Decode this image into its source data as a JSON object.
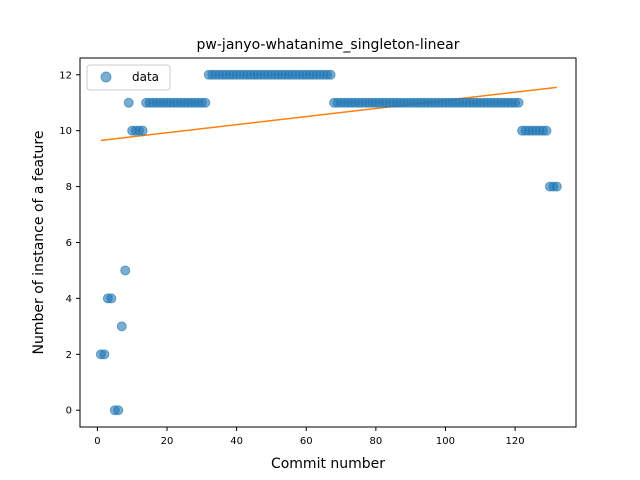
{
  "chart_data": {
    "type": "scatter",
    "title": "pw-janyo-whatanime_singleton-linear",
    "xlabel": "Commit number",
    "ylabel": "Number of instance of a feature",
    "xlim": [
      -5,
      137.5
    ],
    "ylim": [
      -0.6,
      12.6
    ],
    "xticks": [
      0,
      20,
      40,
      60,
      80,
      100,
      120
    ],
    "yticks": [
      0,
      2,
      4,
      6,
      8,
      10,
      12
    ],
    "grid": false,
    "legend": {
      "position": "upper-left",
      "entries": [
        "data"
      ]
    },
    "colors": {
      "data": "#1f77b4",
      "fit": "#ff7f0e"
    },
    "series": [
      {
        "name": "data",
        "kind": "scatter",
        "x": [
          1,
          2,
          3,
          4,
          5,
          6,
          7,
          8,
          9,
          10,
          11,
          12,
          13,
          14,
          15,
          16,
          17,
          18,
          19,
          20,
          21,
          22,
          23,
          24,
          25,
          26,
          27,
          28,
          29,
          30,
          31,
          32,
          33,
          34,
          35,
          36,
          37,
          38,
          39,
          40,
          41,
          42,
          43,
          44,
          45,
          46,
          47,
          48,
          49,
          50,
          51,
          52,
          53,
          54,
          55,
          56,
          57,
          58,
          59,
          60,
          61,
          62,
          63,
          64,
          65,
          66,
          67,
          68,
          69,
          70,
          71,
          72,
          73,
          74,
          75,
          76,
          77,
          78,
          79,
          80,
          81,
          82,
          83,
          84,
          85,
          86,
          87,
          88,
          89,
          90,
          91,
          92,
          93,
          94,
          95,
          96,
          97,
          98,
          99,
          100,
          101,
          102,
          103,
          104,
          105,
          106,
          107,
          108,
          109,
          110,
          111,
          112,
          113,
          114,
          115,
          116,
          117,
          118,
          119,
          120,
          121,
          122,
          123,
          124,
          125,
          126,
          127,
          128,
          129,
          130,
          131,
          132
        ],
        "y": [
          2,
          2,
          4,
          4,
          0,
          0,
          3,
          5,
          11,
          10,
          10,
          10,
          10,
          11,
          11,
          11,
          11,
          11,
          11,
          11,
          11,
          11,
          11,
          11,
          11,
          11,
          11,
          11,
          11,
          11,
          11,
          12,
          12,
          12,
          12,
          12,
          12,
          12,
          12,
          12,
          12,
          12,
          12,
          12,
          12,
          12,
          12,
          12,
          12,
          12,
          12,
          12,
          12,
          12,
          12,
          12,
          12,
          12,
          12,
          12,
          12,
          12,
          12,
          12,
          12,
          12,
          12,
          11,
          11,
          11,
          11,
          11,
          11,
          11,
          11,
          11,
          11,
          11,
          11,
          11,
          11,
          11,
          11,
          11,
          11,
          11,
          11,
          11,
          11,
          11,
          11,
          11,
          11,
          11,
          11,
          11,
          11,
          11,
          11,
          11,
          11,
          11,
          11,
          11,
          11,
          11,
          11,
          11,
          11,
          11,
          11,
          11,
          11,
          11,
          11,
          11,
          11,
          11,
          11,
          11,
          11,
          10,
          10,
          10,
          10,
          10,
          10,
          10,
          10,
          8,
          8,
          8
        ]
      },
      {
        "name": "",
        "kind": "line",
        "x": [
          1,
          132
        ],
        "y": [
          9.65,
          11.55
        ]
      }
    ]
  }
}
